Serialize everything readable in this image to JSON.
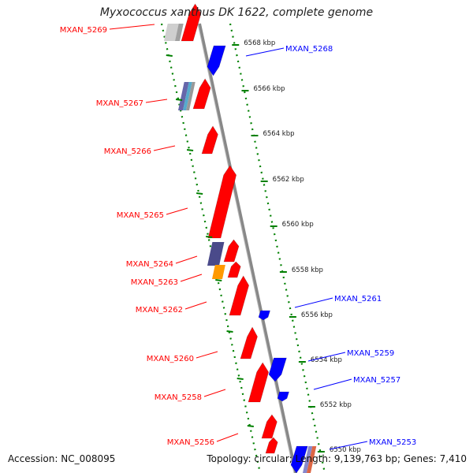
{
  "title": "Myxococcus xanthus DK 1622, complete genome",
  "accession": "Accession: NC_008095",
  "summary": "Topology: circular; Length: 9,139,763 bp; Genes: 7,410",
  "colors": {
    "forward": "#ff0000",
    "reverse": "#0000ff",
    "backbone": "#888888",
    "ticks": "#008000"
  },
  "chart_data": {
    "type": "genome-map",
    "scale_kbp": [
      6568,
      6566,
      6564,
      6562,
      6560,
      6558,
      6556,
      6554,
      6552,
      6550
    ],
    "scale_labels": [
      "6568 kbp",
      "6566 kbp",
      "6564 kbp",
      "6562 kbp",
      "6560 kbp",
      "6558 kbp",
      "6556 kbp",
      "6554 kbp",
      "6552 kbp",
      "6550 kbp"
    ],
    "forward_genes": [
      "MXAN_5269",
      "MXAN_5267",
      "MXAN_5266",
      "MXAN_5265",
      "MXAN_5264",
      "MXAN_5263",
      "MXAN_5262",
      "MXAN_5260",
      "MXAN_5258",
      "MXAN_5256"
    ],
    "reverse_genes": [
      "MXAN_5268",
      "MXAN_5261",
      "MXAN_5259",
      "MXAN_5257",
      "MXAN_5253"
    ]
  }
}
